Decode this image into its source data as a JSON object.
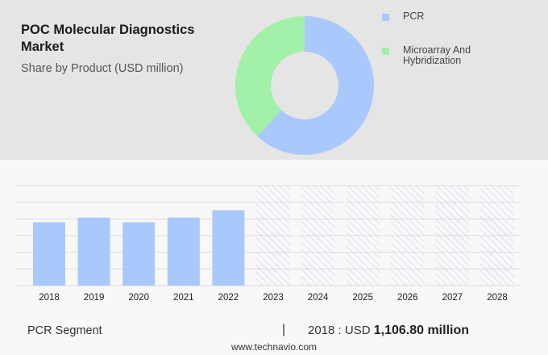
{
  "header": {
    "title": "POC Molecular Diagnostics Market",
    "subtitle": "Share by Product (USD million)"
  },
  "legend": [
    {
      "label": "PCR",
      "color": "#a9c8fb"
    },
    {
      "label": "Microarray And Hybridization",
      "color": "#a3f0a8"
    }
  ],
  "chart_data": [
    {
      "type": "pie",
      "variant": "donut",
      "categories": [
        "PCR",
        "Microarray And Hybridization"
      ],
      "values": [
        62,
        38
      ],
      "colors": [
        "#a9c8fb",
        "#a3f0a8"
      ]
    },
    {
      "type": "bar",
      "categories": [
        "2018",
        "2019",
        "2020",
        "2021",
        "2022",
        "2023",
        "2024",
        "2025",
        "2026",
        "2027",
        "2028"
      ],
      "values": [
        1106.8,
        1190,
        1106.8,
        1190,
        1320,
        null,
        null,
        null,
        null,
        null,
        null
      ],
      "forecast_categories": [
        "2023",
        "2024",
        "2025",
        "2026",
        "2027",
        "2028"
      ],
      "ylim": [
        0,
        1750
      ],
      "grid": true,
      "bar_color": "#a9c8fb",
      "forecast_style": "hatched"
    }
  ],
  "footer": {
    "segment": "PCR Segment",
    "separator": "|",
    "year_label": "2018 : USD",
    "value": "1,106.80 million",
    "website": "www.technavio.com"
  }
}
